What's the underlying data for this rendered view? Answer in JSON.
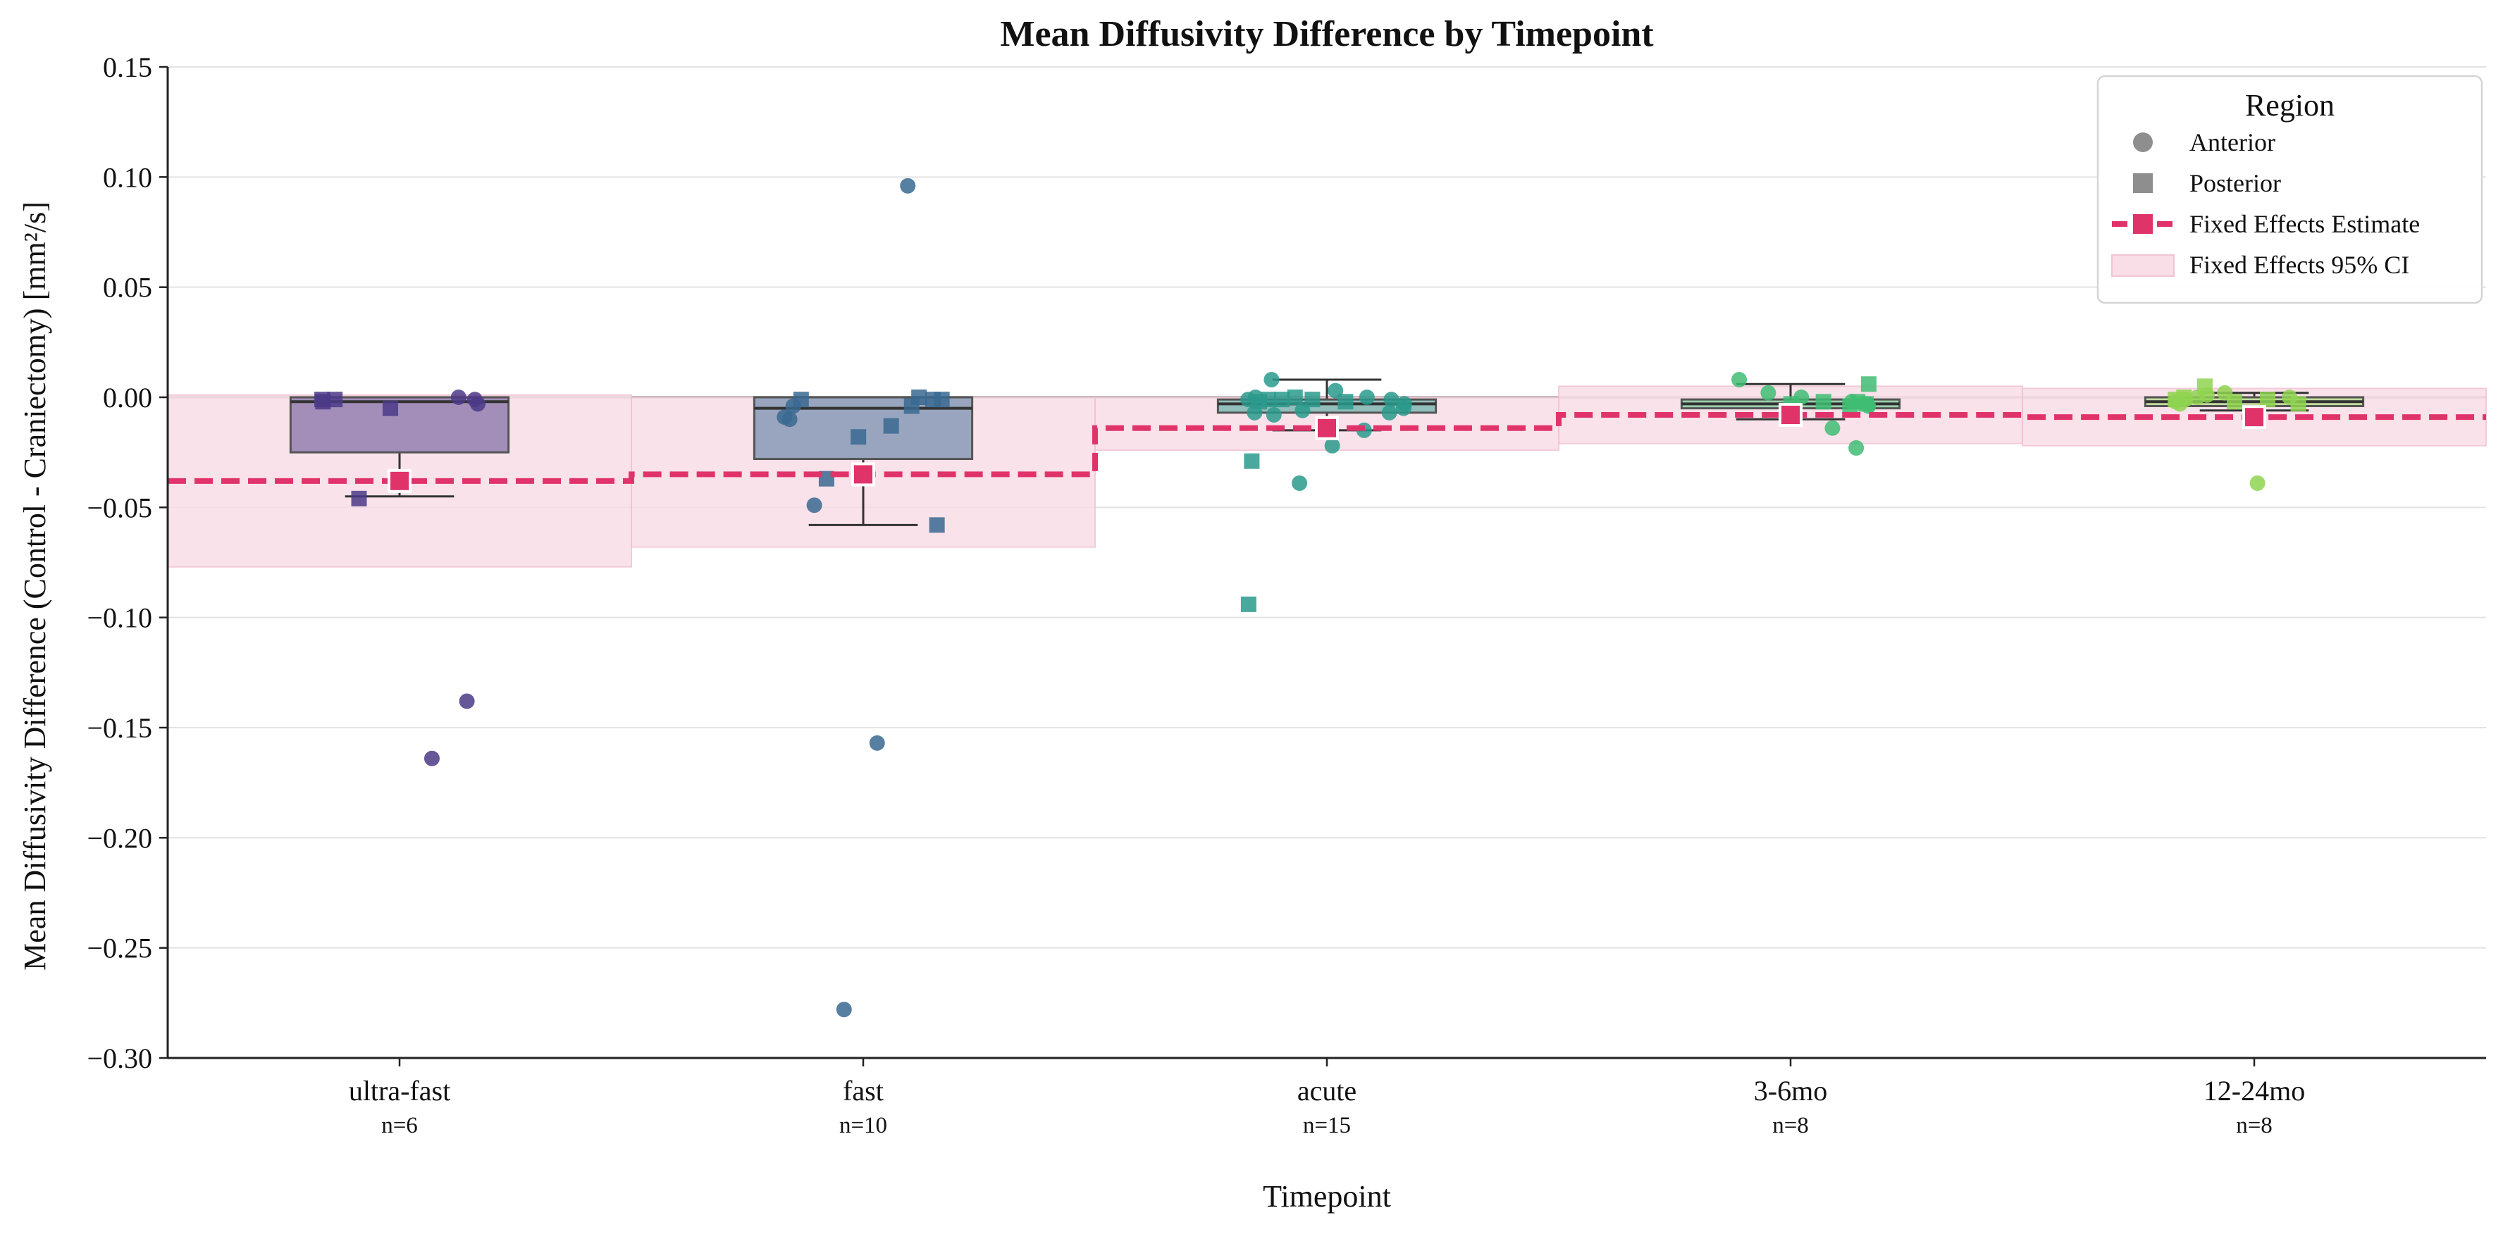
{
  "chart_data": {
    "type": "box",
    "title": "Mean Diffusivity Difference by Timepoint",
    "xlabel": "Timepoint",
    "ylabel": "Mean Diffusivity Difference (Control - Craniectomy) [mm²/s]",
    "ylim": [
      -0.3,
      0.15
    ],
    "yticks": [
      0.15,
      0.1,
      0.05,
      0.0,
      -0.05,
      -0.1,
      -0.15,
      -0.2,
      -0.25,
      -0.3
    ],
    "ytick_labels": [
      "0.15",
      "0.10",
      "0.05",
      "0.00",
      "−0.05",
      "−0.10",
      "−0.15",
      "−0.20",
      "−0.25",
      "−0.30"
    ],
    "grid": "horizontal",
    "categories": [
      "ultra-fast",
      "fast",
      "acute",
      "3-6mo",
      "12-24mo"
    ],
    "n_labels": [
      "n=6",
      "n=10",
      "n=15",
      "n=8",
      "n=8"
    ],
    "colors": [
      "#4b3a87",
      "#3a6891",
      "#2a9a8c",
      "#3fbd73",
      "#8fd450"
    ],
    "estimate_color": "#e0336a",
    "ci_color": "#f9dde7",
    "boxes": [
      {
        "q1": -0.025,
        "median": -0.002,
        "q3": 0.0,
        "whisker_low": -0.045,
        "whisker_high": 0.0
      },
      {
        "q1": -0.028,
        "median": -0.005,
        "q3": 0.0,
        "whisker_low": -0.058,
        "whisker_high": 0.0
      },
      {
        "q1": -0.007,
        "median": -0.003,
        "q3": -0.001,
        "whisker_low": -0.015,
        "whisker_high": 0.008
      },
      {
        "q1": -0.005,
        "median": -0.003,
        "q3": -0.001,
        "whisker_low": -0.01,
        "whisker_high": 0.006
      },
      {
        "q1": -0.004,
        "median": -0.002,
        "q3": 0.0,
        "whisker_low": -0.006,
        "whisker_high": 0.002
      }
    ],
    "fixed_effects": {
      "estimate": [
        -0.038,
        -0.035,
        -0.014,
        -0.008,
        -0.009
      ],
      "ci_low": [
        -0.077,
        -0.068,
        -0.024,
        -0.021,
        -0.022
      ],
      "ci_high": [
        0.001,
        0.0,
        0.0,
        0.005,
        0.004
      ]
    },
    "series": [
      {
        "name": "Anterior",
        "points": [
          [
            0,
            -0.164
          ],
          [
            0,
            0.0
          ],
          [
            0,
            -0.001
          ],
          [
            0,
            -0.003
          ],
          [
            0,
            -0.138
          ],
          [
            1,
            0.096
          ],
          [
            1,
            -0.157
          ],
          [
            1,
            -0.278
          ],
          [
            1,
            -0.049
          ],
          [
            1,
            -0.004
          ],
          [
            1,
            -0.009
          ],
          [
            1,
            -0.01
          ],
          [
            2,
            0.008
          ],
          [
            2,
            -0.039
          ],
          [
            2,
            -0.022
          ],
          [
            2,
            -0.015
          ],
          [
            2,
            -0.007
          ],
          [
            2,
            -0.005
          ],
          [
            2,
            -0.003
          ],
          [
            2,
            -0.001
          ],
          [
            2,
            0.0
          ],
          [
            2,
            0.003
          ],
          [
            2,
            -0.006
          ],
          [
            2,
            -0.008
          ],
          [
            2,
            -0.007
          ],
          [
            2,
            -0.001
          ],
          [
            2,
            0.0
          ],
          [
            3,
            0.008
          ],
          [
            3,
            0.002
          ],
          [
            3,
            0.0
          ],
          [
            3,
            -0.014
          ],
          [
            3,
            -0.023
          ],
          [
            3,
            -0.004
          ],
          [
            3,
            -0.003
          ],
          [
            3,
            -0.002
          ],
          [
            4,
            0.0
          ],
          [
            4,
            -0.039
          ],
          [
            4,
            0.002
          ],
          [
            4,
            0.0
          ],
          [
            4,
            -0.003
          ],
          [
            4,
            -0.002
          ],
          [
            4,
            -0.001
          ],
          [
            4,
            0.001
          ]
        ]
      },
      {
        "name": "Posterior",
        "points": [
          [
            0,
            -0.005
          ],
          [
            0,
            -0.046
          ],
          [
            0,
            -0.001
          ],
          [
            0,
            -0.001
          ],
          [
            0,
            -0.002
          ],
          [
            1,
            -0.001
          ],
          [
            1,
            -0.037
          ],
          [
            1,
            -0.018
          ],
          [
            1,
            -0.013
          ],
          [
            1,
            0.0
          ],
          [
            1,
            -0.058
          ],
          [
            1,
            -0.001
          ],
          [
            1,
            -0.001
          ],
          [
            1,
            -0.004
          ],
          [
            2,
            -0.002
          ],
          [
            2,
            -0.001
          ],
          [
            2,
            -0.001
          ],
          [
            2,
            -0.002
          ],
          [
            2,
            -0.094
          ],
          [
            2,
            -0.029
          ],
          [
            2,
            -0.001
          ],
          [
            2,
            0.0
          ],
          [
            3,
            -0.003
          ],
          [
            3,
            -0.002
          ],
          [
            3,
            -0.004
          ],
          [
            3,
            -0.003
          ],
          [
            3,
            0.006
          ],
          [
            3,
            -0.002
          ],
          [
            4,
            -0.003
          ],
          [
            4,
            -0.001
          ],
          [
            4,
            -0.002
          ],
          [
            4,
            0.005
          ],
          [
            4,
            0.0
          ],
          [
            4,
            -0.001
          ]
        ]
      }
    ],
    "legend": {
      "title": "Region",
      "position": "top-right",
      "items": [
        "Anterior",
        "Posterior",
        "Fixed Effects Estimate",
        "Fixed Effects 95% CI"
      ]
    }
  }
}
